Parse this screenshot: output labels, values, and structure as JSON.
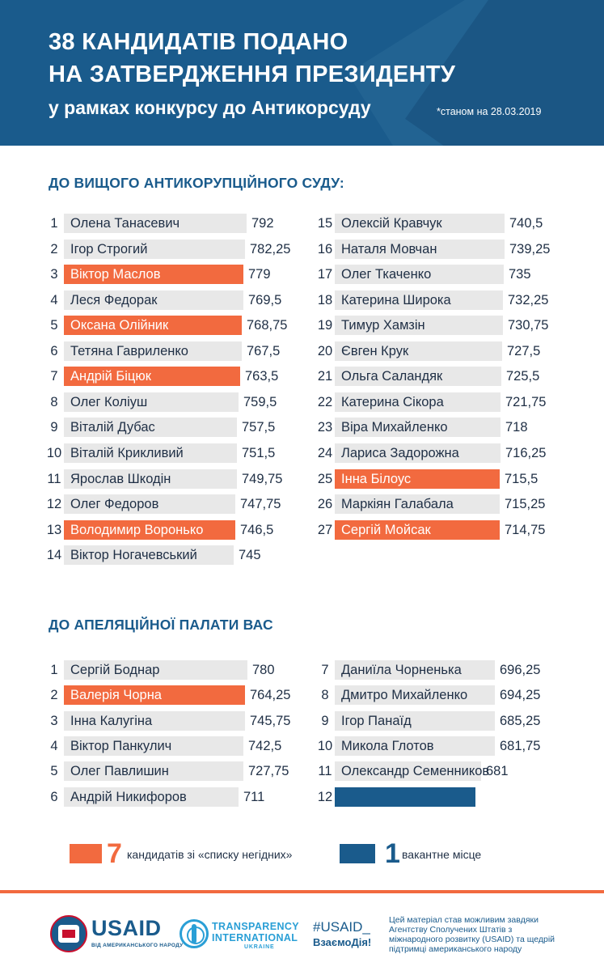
{
  "header": {
    "line1": "38 КАНДИДАТІВ ПОДАНО",
    "line2": "НА ЗАТВЕРДЖЕННЯ ПРЕЗИДЕНТУ",
    "line3": "у рамках конкурсу до Антикорсуду",
    "date_note": "*станом на 28.03.2019"
  },
  "section_high_court": {
    "title": "ДО ВИЩОГО АНТИКОРУПЦІЙНОГО СУДУ:",
    "left": [
      {
        "num": "1",
        "name": "Олена Танасевич",
        "score": "792"
      },
      {
        "num": "2",
        "name": "Ігор Строгий",
        "score": "782,25"
      },
      {
        "num": "3",
        "name": "Віктор Маслов",
        "score": "779"
      },
      {
        "num": "4",
        "name": "Леся Федорак",
        "score": "769,5"
      },
      {
        "num": "5",
        "name": "Оксана Олійник",
        "score": "768,75"
      },
      {
        "num": "6",
        "name": "Тетяна Гавриленко",
        "score": "767,5"
      },
      {
        "num": "7",
        "name": "Андрій Біцюк",
        "score": "763,5"
      },
      {
        "num": "8",
        "name": "Олег Коліуш",
        "score": "759,5"
      },
      {
        "num": "9",
        "name": "Віталій Дубас",
        "score": "757,5"
      },
      {
        "num": "10",
        "name": "Віталій Крикливий",
        "score": "751,5"
      },
      {
        "num": "11",
        "name": "Ярослав Шкодін",
        "score": "749,75"
      },
      {
        "num": "12",
        "name": "Олег Федоров",
        "score": "747,75"
      },
      {
        "num": "13",
        "name": "Володимир Воронько",
        "score": "746,5"
      },
      {
        "num": "14",
        "name": "Віктор Ногачевський",
        "score": "745"
      }
    ],
    "right": [
      {
        "num": "15",
        "name": "Олексій Кравчук",
        "score": "740,5"
      },
      {
        "num": "16",
        "name": "Наталя Мовчан",
        "score": "739,25"
      },
      {
        "num": "17",
        "name": "Олег Ткаченко",
        "score": "735"
      },
      {
        "num": "18",
        "name": "Катерина Широка",
        "score": "732,25"
      },
      {
        "num": "19",
        "name": "Тимур Хамзін",
        "score": "730,75"
      },
      {
        "num": "20",
        "name": "Євген Крук",
        "score": "727,5"
      },
      {
        "num": "21",
        "name": "Ольга Саландяк",
        "score": "725,5"
      },
      {
        "num": "22",
        "name": "Катерина Сікора",
        "score": "721,75"
      },
      {
        "num": "23",
        "name": "Віра Михайленко",
        "score": "718"
      },
      {
        "num": "24",
        "name": "Лариса Задорожна",
        "score": "716,25"
      },
      {
        "num": "25",
        "name": "Інна Білоус",
        "score": "715,5"
      },
      {
        "num": "26",
        "name": "Маркіян Галабала",
        "score": "715,25"
      },
      {
        "num": "27",
        "name": "Сергій Мойсак",
        "score": "714,75"
      }
    ]
  },
  "section_appeal": {
    "title": "ДО АПЕЛЯЦІЙНОЇ ПАЛАТИ ВАС",
    "left": [
      {
        "num": "1",
        "name": "Сергій Боднар",
        "score": "780"
      },
      {
        "num": "2",
        "name": "Валерія Чорна",
        "score": "764,25"
      },
      {
        "num": "3",
        "name": "Інна Калугіна",
        "score": "745,75"
      },
      {
        "num": "4",
        "name": "Віктор Панкулич",
        "score": "742,5"
      },
      {
        "num": "5",
        "name": "Олег Павлишин",
        "score": "727,75"
      },
      {
        "num": "6",
        "name": "Андрій Никифоров",
        "score": "711"
      }
    ],
    "right": [
      {
        "num": "7",
        "name": "Даниїла Чорненька",
        "score": "696,25"
      },
      {
        "num": "8",
        "name": "Дмитро Михайленко",
        "score": "694,25"
      },
      {
        "num": "9",
        "name": "Ігор Панаїд",
        "score": "685,25"
      },
      {
        "num": "10",
        "name": "Микола Глотов",
        "score": "681,75"
      },
      {
        "num": "11",
        "name": "Олександр Семенников",
        "score": "681"
      },
      {
        "num": "12",
        "name": "",
        "score": ""
      }
    ]
  },
  "legend": {
    "flagged_count": "7",
    "flagged_text": "кандидатів зі «списку негідних»",
    "vacant_count": "1",
    "vacant_text": "вакантне місце"
  },
  "footer": {
    "usaid_word": "USAID",
    "usaid_sub": "ВІД АМЕРИКАНСЬКОГО НАРОДУ",
    "ti_line1": "TRANSPARENCY",
    "ti_line2": "INTERNATIONAL",
    "ti_line3": "UKRAINE",
    "hashtag1": "#USAID_",
    "hashtag2": "ВзаємоДія!",
    "credit": "Цей матеріал став можливим завдяки Агентству Сполучених Штатів з міжнародного розвитку (USAID) та щедрій підтримці американського народу"
  },
  "colors": {
    "header_bg": "#1a5b8c",
    "highlight_orange": "#f26a3f",
    "bar_gray": "#e8e8e8",
    "vacant_blue": "#1a5b8c"
  }
}
